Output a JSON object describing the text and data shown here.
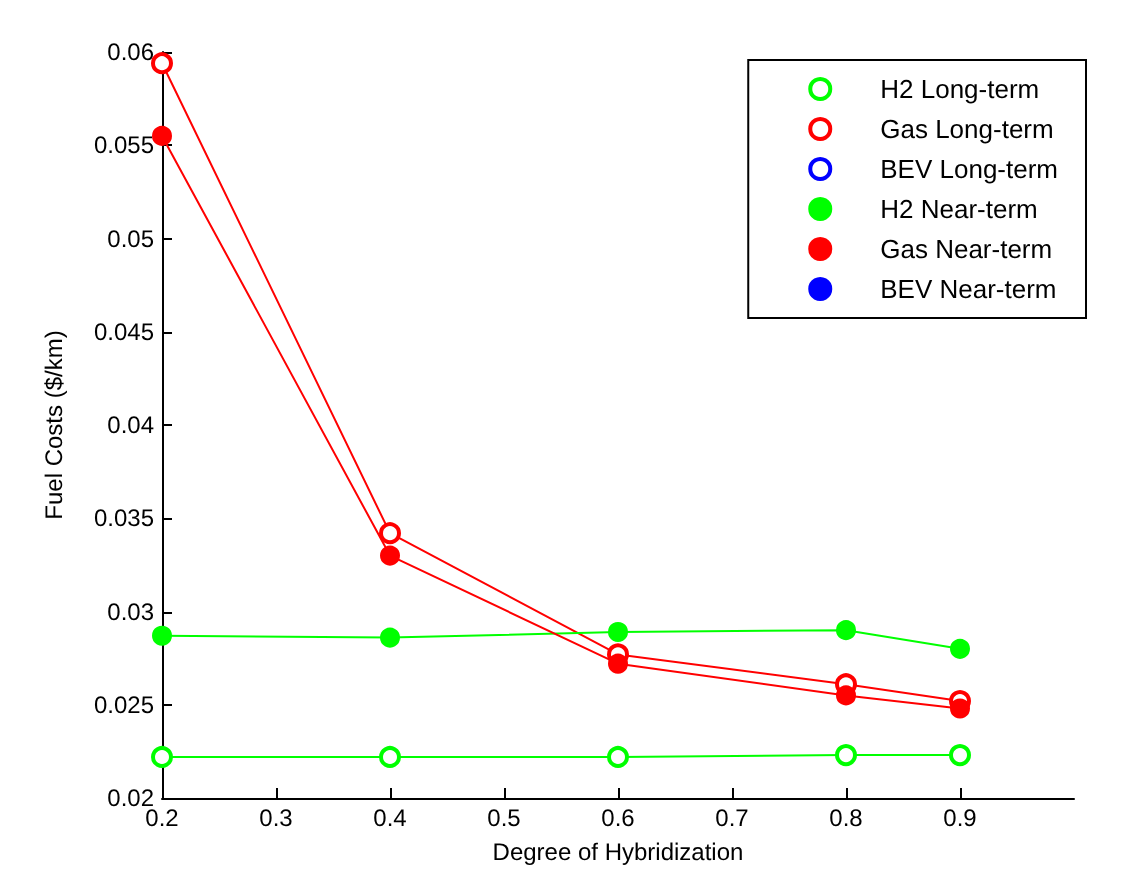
{
  "chart_data": {
    "type": "line",
    "xlabel": "Degree of Hybridization",
    "ylabel": "Fuel Costs ($/km)",
    "x": [
      0.2,
      0.4,
      0.6,
      0.8,
      0.9
    ],
    "xlim": [
      0.2,
      1.0
    ],
    "xticks": [
      0.2,
      0.3,
      0.4,
      0.5,
      0.6,
      0.7,
      0.8,
      0.9
    ],
    "ylim": [
      0.02,
      0.06
    ],
    "yticks": [
      0.02,
      0.025,
      0.03,
      0.035,
      0.04,
      0.045,
      0.05,
      0.055,
      0.06
    ],
    "grid": false,
    "legend": "top right",
    "marker": "circle",
    "line_style": "solid",
    "series": [
      {
        "name": "H2 Long-term",
        "color": "#00ff00",
        "marker": "open circle",
        "values": [
          0.0222,
          0.0222,
          0.0222,
          0.0223,
          0.0223
        ]
      },
      {
        "name": "Gas Long-term",
        "color": "#ff0000",
        "marker": "open circle",
        "values": [
          0.0594,
          0.0342,
          0.0277,
          0.0261,
          0.0252
        ]
      },
      {
        "name": "BEV Long-term",
        "color": "#0000ff",
        "marker": "open circle",
        "values": [
          null,
          null,
          null,
          null,
          null
        ]
      },
      {
        "name": "H2 Near-term",
        "color": "#00ff00",
        "values": [
          0.0287,
          0.0286,
          0.0289,
          0.029,
          0.028
        ]
      },
      {
        "name": "Gas Near-term",
        "color": "#ff0000",
        "values": [
          0.0555,
          0.033,
          0.0272,
          0.0255,
          0.0248
        ]
      },
      {
        "name": "BEV Near-term",
        "color": "#0000ff",
        "values": [
          null,
          null,
          null,
          null,
          null
        ]
      }
    ]
  }
}
